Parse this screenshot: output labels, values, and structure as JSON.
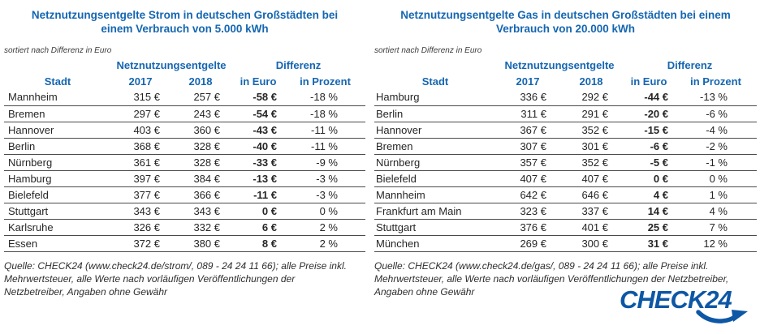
{
  "chart_data": [
    {
      "type": "table",
      "title": "Netznutzungsentgelte Strom in deutschen Großstädten bei einem Verbrauch von 5.000 kWh",
      "sort_note": "sortiert nach Differenz in Euro",
      "group_headers": {
        "fees": "Netznutzungsentgelte",
        "diff": "Differenz"
      },
      "columns": [
        "Stadt",
        "2017",
        "2018",
        "in Euro",
        "in Prozent"
      ],
      "rows": [
        {
          "city": "Mannheim",
          "y2017": "315 €",
          "y2018": "257 €",
          "diff_euro": "-58 €",
          "diff_pct": "-18 %"
        },
        {
          "city": "Bremen",
          "y2017": "297 €",
          "y2018": "243 €",
          "diff_euro": "-54 €",
          "diff_pct": "-18 %"
        },
        {
          "city": "Hannover",
          "y2017": "403 €",
          "y2018": "360 €",
          "diff_euro": "-43 €",
          "diff_pct": "-11 %"
        },
        {
          "city": "Berlin",
          "y2017": "368 €",
          "y2018": "328 €",
          "diff_euro": "-40 €",
          "diff_pct": "-11 %"
        },
        {
          "city": "Nürnberg",
          "y2017": "361 €",
          "y2018": "328 €",
          "diff_euro": "-33 €",
          "diff_pct": "-9 %"
        },
        {
          "city": "Hamburg",
          "y2017": "397 €",
          "y2018": "384 €",
          "diff_euro": "-13 €",
          "diff_pct": "-3 %"
        },
        {
          "city": "Bielefeld",
          "y2017": "377 €",
          "y2018": "366 €",
          "diff_euro": "-11 €",
          "diff_pct": "-3 %"
        },
        {
          "city": "Stuttgart",
          "y2017": "343 €",
          "y2018": "343 €",
          "diff_euro": "0 €",
          "diff_pct": "0 %"
        },
        {
          "city": "Karlsruhe",
          "y2017": "326 €",
          "y2018": "332 €",
          "diff_euro": "6 €",
          "diff_pct": "2 %"
        },
        {
          "city": "Essen",
          "y2017": "372 €",
          "y2018": "380 €",
          "diff_euro": "8 €",
          "diff_pct": "2 %"
        }
      ],
      "source": "Quelle: CHECK24 (www.check24.de/strom/, 089 - 24 24 11 66); alle Preise inkl. Mehrwertsteuer, alle Werte nach vorläufigen Veröffentlichungen der Netzbetreiber, Angaben ohne Gewähr"
    },
    {
      "type": "table",
      "title": "Netznutzungsentgelte Gas in deutschen Großstädten bei einem Verbrauch von 20.000 kWh",
      "sort_note": "sortiert nach Differenz in Euro",
      "group_headers": {
        "fees": "Netznutzungsentgelte",
        "diff": "Differenz"
      },
      "columns": [
        "Stadt",
        "2017",
        "2018",
        "in Euro",
        "in Prozent"
      ],
      "rows": [
        {
          "city": "Hamburg",
          "y2017": "336 €",
          "y2018": "292 €",
          "diff_euro": "-44 €",
          "diff_pct": "-13 %"
        },
        {
          "city": "Berlin",
          "y2017": "311 €",
          "y2018": "291 €",
          "diff_euro": "-20 €",
          "diff_pct": "-6 %"
        },
        {
          "city": "Hannover",
          "y2017": "367 €",
          "y2018": "352 €",
          "diff_euro": "-15 €",
          "diff_pct": "-4 %"
        },
        {
          "city": "Bremen",
          "y2017": "307 €",
          "y2018": "301 €",
          "diff_euro": "-6 €",
          "diff_pct": "-2 %"
        },
        {
          "city": "Nürnberg",
          "y2017": "357 €",
          "y2018": "352 €",
          "diff_euro": "-5 €",
          "diff_pct": "-1 %"
        },
        {
          "city": "Bielefeld",
          "y2017": "407 €",
          "y2018": "407 €",
          "diff_euro": "0 €",
          "diff_pct": "0 %"
        },
        {
          "city": "Mannheim",
          "y2017": "642 €",
          "y2018": "646 €",
          "diff_euro": "4 €",
          "diff_pct": "1 %"
        },
        {
          "city": "Frankfurt am Main",
          "y2017": "323 €",
          "y2018": "337 €",
          "diff_euro": "14 €",
          "diff_pct": "4 %"
        },
        {
          "city": "Stuttgart",
          "y2017": "376 €",
          "y2018": "401 €",
          "diff_euro": "25 €",
          "diff_pct": "7 %"
        },
        {
          "city": "München",
          "y2017": "269 €",
          "y2018": "300 €",
          "diff_euro": "31 €",
          "diff_pct": "12 %"
        }
      ],
      "source": "Quelle: CHECK24 (www.check24.de/gas/, 089 - 24 24 11 66); alle Preise inkl. Mehrwertsteuer, alle Werte nach vorläufigen Veröffentlichungen der Netzbetreiber, Angaben ohne Gewähr"
    }
  ],
  "logo": {
    "text": "CHECK24"
  },
  "colors": {
    "accent_blue": "#1566b1",
    "logo_blue": "#0d57a5",
    "body_text": "#262626",
    "row_line": "#4b4b4b"
  }
}
